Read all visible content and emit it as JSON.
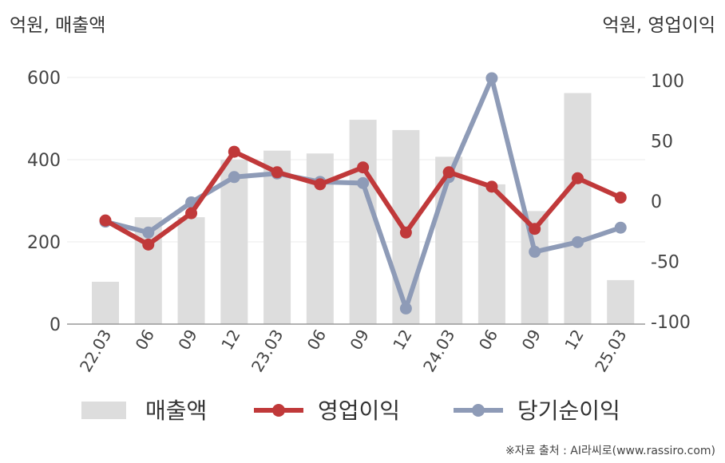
{
  "units": {
    "left": "억원, 매출액",
    "right": "억원, 영업이익"
  },
  "source": "※자료 출처 : AI라씨로(www.rassiro.com)",
  "chart_data": {
    "type": "bar+line",
    "categories": [
      "22.03",
      "06",
      "09",
      "12",
      "23.03",
      "06",
      "09",
      "12",
      "24.03",
      "06",
      "09",
      "12",
      "25.03"
    ],
    "left_axis": {
      "ylim": [
        0,
        600
      ],
      "ticks": [
        0,
        200,
        400,
        600
      ]
    },
    "right_axis": {
      "ylim": [
        -100,
        100
      ],
      "ticks": [
        -100,
        -50,
        0,
        50,
        100
      ]
    },
    "series": [
      {
        "name": "매출액",
        "type": "bar",
        "axis": "left",
        "color": "#dddddd",
        "values": [
          103,
          260,
          260,
          400,
          422,
          415,
          497,
          472,
          407,
          340,
          275,
          562,
          107
        ]
      },
      {
        "name": "영업이익",
        "type": "line",
        "axis": "right",
        "color": "#c0393a",
        "values": [
          -16,
          -36,
          -10,
          41,
          24,
          14,
          28,
          -26,
          24,
          12,
          -23,
          19,
          3
        ]
      },
      {
        "name": "당기순이익",
        "type": "line",
        "axis": "right",
        "color": "#8e9bb7",
        "values": [
          -17,
          -26,
          -1,
          20,
          23,
          16,
          15,
          -89,
          20,
          102,
          -42,
          -34,
          -22
        ]
      }
    ],
    "grid": true,
    "legend": "bottom"
  }
}
